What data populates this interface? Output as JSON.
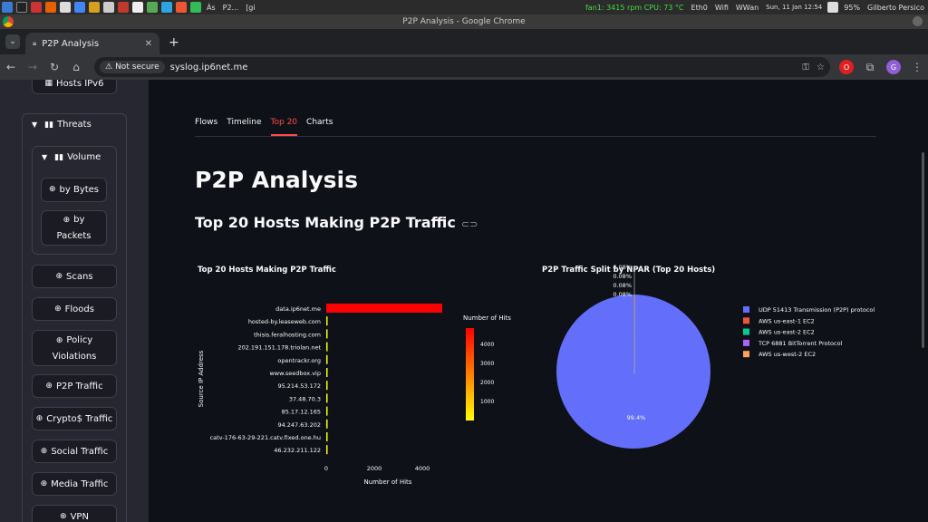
{
  "taskbar": {
    "items": [
      "Às",
      "P2...",
      "[gi",
      "fan1: 3415 rpm  CPU: 73 °C",
      "Eth0",
      "Wifi",
      "WWan",
      "Sun, 11 Jan  12:54",
      "95%",
      "Gilberto Persico"
    ]
  },
  "window": {
    "title": "P2P Analysis - Google Chrome"
  },
  "browser": {
    "tab_title": "P2P Analysis",
    "new_tab": "+",
    "not_secure": "Not secure",
    "url": "syslog.ip6net.me"
  },
  "sidebar": {
    "top_button": "Hosts IPv6",
    "threats_label": "Threats",
    "volume_label": "Volume",
    "by_bytes": "by Bytes",
    "by_packets_1": "by",
    "by_packets_2": "Packets",
    "scans": "Scans",
    "floods": "Floods",
    "policy_1": "Policy",
    "policy_2": "Violations",
    "p2p": "P2P Traffic",
    "crypto": "Crypto$ Traffic",
    "social": "Social Traffic",
    "media": "Media Traffic",
    "vpn": "VPN"
  },
  "main": {
    "tabs": [
      "Flows",
      "Timeline",
      "Top 20",
      "Charts"
    ],
    "active_tab": "Top 20",
    "title": "P2P Analysis",
    "subtitle": "Top 20 Hosts Making P2P Traffic"
  },
  "chart_data": [
    {
      "type": "bar",
      "orientation": "horizontal",
      "title": "Top 20 Hosts Making P2P Traffic",
      "xlabel": "Number of Hits",
      "ylabel": "Source IP Address",
      "categories": [
        "data.ip6net.me",
        "hosted-by.leaseweb.com",
        "thisis.feralhosting.com",
        "202.191.151.178.triolan.net",
        "opentrackr.org",
        "www.seedbox.vip",
        "95.214.53.172",
        "37.48.70.3",
        "85.17.12.165",
        "94.247.63.202",
        "catv-176-63-29-221.catv.fixed.one.hu",
        "46.232.211.122"
      ],
      "values": [
        4850,
        30,
        25,
        22,
        20,
        18,
        16,
        15,
        14,
        13,
        12,
        11
      ],
      "xlim": [
        0,
        5000
      ],
      "xticks": [
        "0",
        "2000",
        "4000"
      ],
      "colorbar": {
        "title": "Number of Hits",
        "ticks": [
          "4000",
          "3000",
          "2000",
          "1000"
        ],
        "colors": [
          "#ffff00",
          "#ff0000"
        ]
      }
    },
    {
      "type": "pie",
      "title": "P2P Traffic Split by NPAR (Top 20 Hosts)",
      "legend_position": "right",
      "slices": [
        {
          "label": "UDP 51413 Transmission (P2P) protocol",
          "value": 99.4,
          "color": "#636efa",
          "text": "99.4%"
        },
        {
          "label": "AWS us-east-1 EC2",
          "value": 0.08,
          "color": "#ef553b",
          "text": "0.08%"
        },
        {
          "label": "AWS us-east-2 EC2",
          "value": 0.08,
          "color": "#00cc96",
          "text": "0.08%"
        },
        {
          "label": "TCP 6881 BitTorrent Protocol",
          "value": 0.08,
          "color": "#ab63fa",
          "text": "0.08%"
        },
        {
          "label": "AWS us-west-2 EC2",
          "value": 0.08,
          "color": "#ffa15a",
          "text": "0.08%"
        }
      ]
    }
  ]
}
